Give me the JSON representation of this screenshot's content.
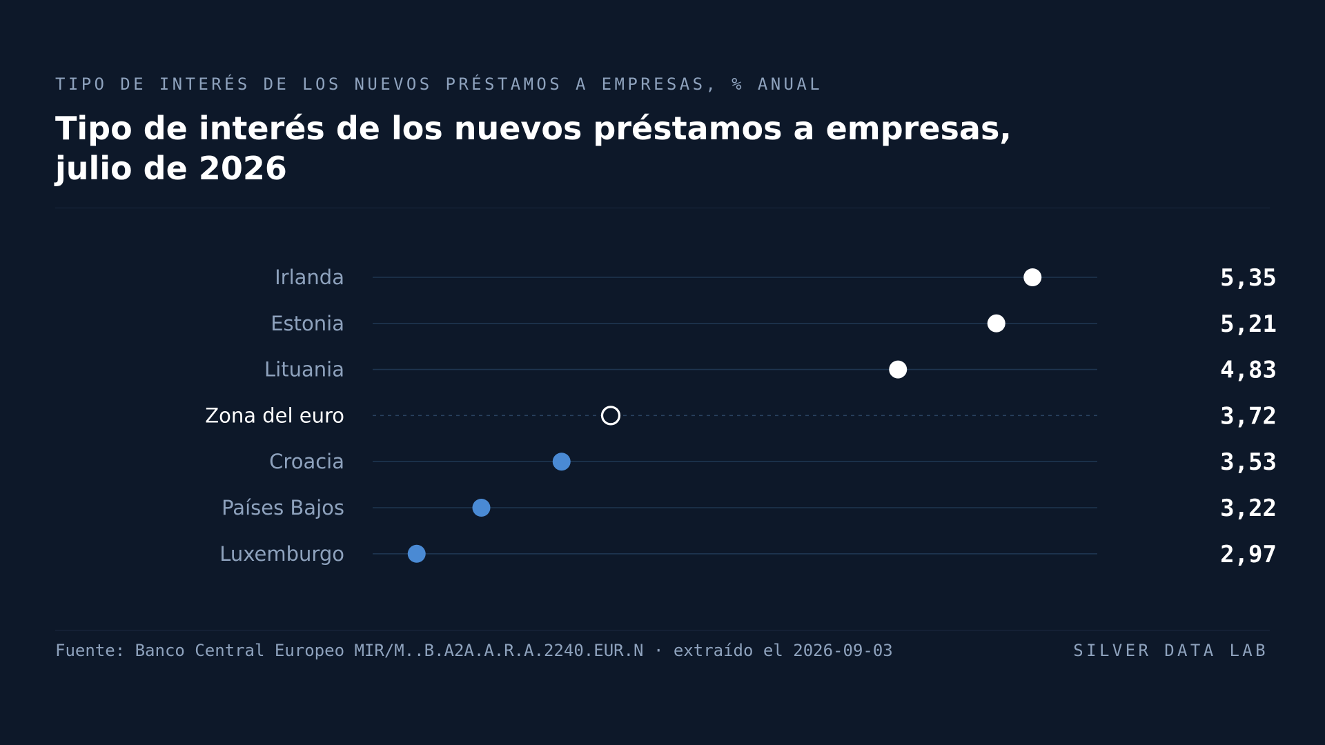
{
  "header": {
    "kicker": "TIPO DE INTERÉS DE LOS NUEVOS PRÉSTAMOS A EMPRESAS, % ANUAL",
    "title": "Tipo de interés de los nuevos préstamos a empresas, julio de 2026"
  },
  "footer": {
    "source": "Fuente: Banco Central Europeo MIR/M..B.A2A.A.R.A.2240.EUR.N · extraído el 2026-09-03",
    "brand": "SILVER DATA LAB"
  },
  "colors": {
    "background": "#0d1829",
    "above_average": "#ffffff",
    "below_average": "#4a8ad4",
    "reference": "#ffffff",
    "track": "#1e3550",
    "label": "#8ea2bd",
    "value": "#ffffff"
  },
  "chart_data": {
    "type": "dot",
    "orientation": "horizontal",
    "xlim": [
      2.8,
      5.6
    ],
    "grid": false,
    "legend": "none",
    "reference_category": "Zona del euro",
    "categories": [
      "Irlanda",
      "Estonia",
      "Lituania",
      "Zona del euro",
      "Croacia",
      "Países Bajos",
      "Luxemburgo"
    ],
    "values": [
      5.35,
      5.21,
      4.83,
      3.72,
      3.53,
      3.22,
      2.97
    ],
    "value_labels": [
      "5,35",
      "5,21",
      "4,83",
      "3,72",
      "3,53",
      "3,22",
      "2,97"
    ]
  }
}
